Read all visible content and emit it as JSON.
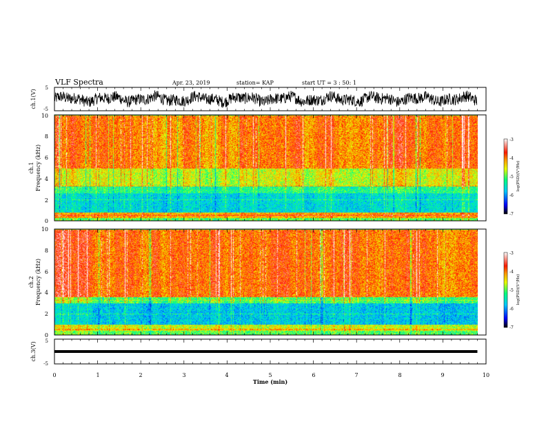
{
  "header": {
    "title": "VLF Spectra",
    "date": "Apr. 23, 2019",
    "station": "station= KAP",
    "start": "start  UT =   3 : 50: 1"
  },
  "chart_data": [
    {
      "type": "line",
      "name": "ch1-waveform",
      "ylabel": "ch.1(V)",
      "xlim": [
        0,
        10
      ],
      "ylim": [
        -5,
        5
      ],
      "ytick_labels": [
        "5",
        "-5"
      ],
      "x_extent": [
        0,
        9.8
      ],
      "mean": 0.0,
      "amplitude": 2.5
    },
    {
      "type": "heatmap",
      "name": "ch1-spectrogram",
      "ylabel_top": "ch.1",
      "ylabel": "Frequency (kHz)",
      "xlim": [
        0,
        10
      ],
      "ylim": [
        0,
        10
      ],
      "ytick_labels": [
        "0",
        "2",
        "4",
        "6",
        "8",
        "10"
      ],
      "x_extent": [
        0,
        9.8
      ],
      "bands_khz_logpsd": [
        [
          0,
          0.3,
          -5.0
        ],
        [
          0.3,
          0.8,
          -4.2
        ],
        [
          0.8,
          2.6,
          -5.6
        ],
        [
          2.6,
          3.3,
          -5.2
        ],
        [
          3.3,
          5.0,
          -4.6
        ],
        [
          5.0,
          10,
          -4.0
        ]
      ]
    },
    {
      "type": "heatmap",
      "name": "ch2-spectrogram",
      "ylabel_top": "ch.2",
      "ylabel": "Frequency (kHz)",
      "xlim": [
        0,
        10
      ],
      "ylim": [
        0,
        10
      ],
      "ytick_labels": [
        "0",
        "2",
        "4",
        "6",
        "8",
        "10"
      ],
      "x_extent": [
        0,
        9.8
      ],
      "bands_khz_logpsd": [
        [
          0,
          0.4,
          -5.0
        ],
        [
          0.4,
          1.0,
          -4.6
        ],
        [
          1.0,
          3.0,
          -5.7
        ],
        [
          3.0,
          3.6,
          -5.0
        ],
        [
          3.6,
          10,
          -3.9
        ]
      ]
    },
    {
      "type": "line",
      "name": "ch3-waveform",
      "ylabel": "ch.3(V)",
      "xlabel": "Time (min)",
      "xlim": [
        0,
        10
      ],
      "ylim": [
        -5,
        5
      ],
      "ytick_labels": [
        "5",
        "-5"
      ],
      "xtick_labels": [
        "0",
        "1",
        "2",
        "3",
        "4",
        "5",
        "6",
        "7",
        "8",
        "9",
        "10"
      ],
      "x_extent": [
        0,
        9.8
      ],
      "values_constant": 0.0
    }
  ],
  "colorbar": {
    "label": "log(PSD)(V²/Hz)",
    "tick_labels": [
      "-3",
      "-4",
      "-5",
      "-6",
      "-7"
    ],
    "range": [
      -7,
      -3
    ]
  }
}
